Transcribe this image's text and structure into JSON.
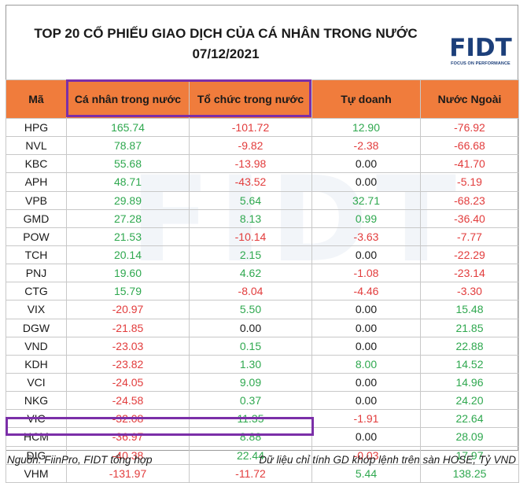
{
  "title": {
    "line1": "TOP 20 CỔ PHIẾU GIAO DỊCH CỦA CÁ NHÂN TRONG NƯỚC",
    "line2": "07/12/2021"
  },
  "logo": {
    "text": "FIDT",
    "tagline": "FOCUS ON PERFORMANCE",
    "color": "#1c3f7a"
  },
  "watermark": "FIDT",
  "table": {
    "headers": [
      "Mã",
      "Cá nhân trong nước",
      "Tổ chức trong nước",
      "Tự doanh",
      "Nước Ngoài"
    ],
    "rows": [
      [
        "HPG",
        "165.74",
        "-101.72",
        "12.90",
        "-76.92"
      ],
      [
        "NVL",
        "78.87",
        "-9.82",
        "-2.38",
        "-66.68"
      ],
      [
        "KBC",
        "55.68",
        "-13.98",
        "0.00",
        "-41.70"
      ],
      [
        "APH",
        "48.71",
        "-43.52",
        "0.00",
        "-5.19"
      ],
      [
        "VPB",
        "29.89",
        "5.64",
        "32.71",
        "-68.23"
      ],
      [
        "GMD",
        "27.28",
        "8.13",
        "0.99",
        "-36.40"
      ],
      [
        "POW",
        "21.53",
        "-10.14",
        "-3.63",
        "-7.77"
      ],
      [
        "TCH",
        "20.14",
        "2.15",
        "0.00",
        "-22.29"
      ],
      [
        "PNJ",
        "19.60",
        "4.62",
        "-1.08",
        "-23.14"
      ],
      [
        "CTG",
        "15.79",
        "-8.04",
        "-4.46",
        "-3.30"
      ],
      [
        "VIX",
        "-20.97",
        "5.50",
        "0.00",
        "15.48"
      ],
      [
        "DGW",
        "-21.85",
        "0.00",
        "0.00",
        "21.85"
      ],
      [
        "VND",
        "-23.03",
        "0.15",
        "0.00",
        "22.88"
      ],
      [
        "KDH",
        "-23.82",
        "1.30",
        "8.00",
        "14.52"
      ],
      [
        "VCI",
        "-24.05",
        "9.09",
        "0.00",
        "14.96"
      ],
      [
        "NKG",
        "-24.58",
        "0.37",
        "0.00",
        "24.20"
      ],
      [
        "VIC",
        "-32.08",
        "11.35",
        "-1.91",
        "22.64"
      ],
      [
        "HCM",
        "-36.97",
        "8.88",
        "0.00",
        "28.09"
      ],
      [
        "DIG",
        "-40.38",
        "22.44",
        "-0.03",
        "17.97"
      ],
      [
        "VHM",
        "-131.97",
        "-11.72",
        "5.44",
        "138.25"
      ]
    ]
  },
  "colors": {
    "header_bg": "#f07c3c",
    "positive": "#2fa84f",
    "negative": "#e23c3c",
    "highlight": "#7b2fa8"
  },
  "footer": {
    "source": "Nguồn: FiinPro, FIDT tổng hợp",
    "note": "Dữ liệu chỉ tính GD khớp lệnh trên sàn HOSE, Tỷ VND"
  }
}
